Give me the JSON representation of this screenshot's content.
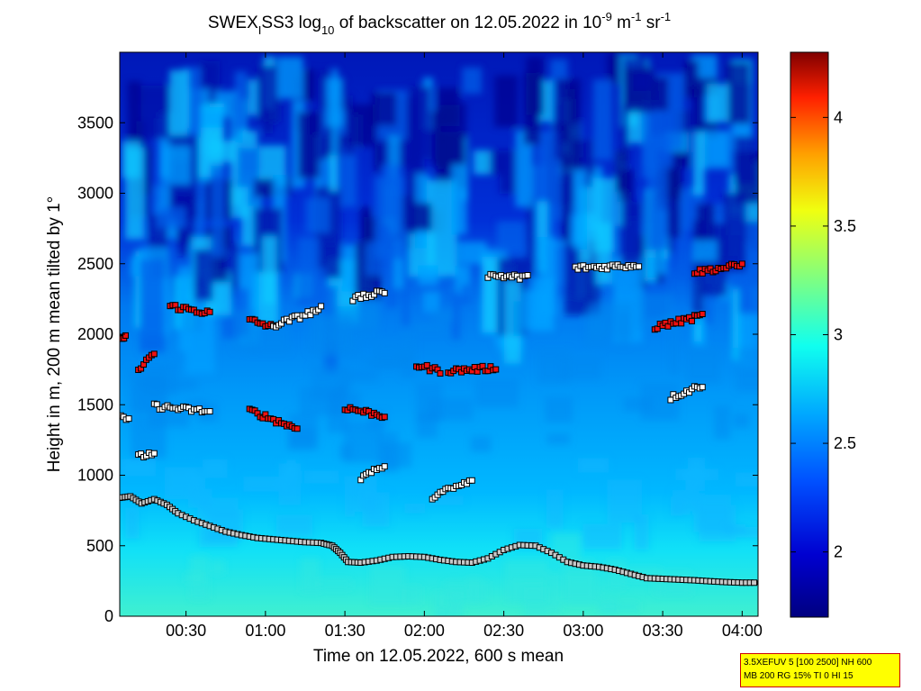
{
  "chart_data": {
    "type": "heatmap",
    "title_parts": {
      "pre": "SWEX",
      "sub1": "I",
      "mid": "SS3 log",
      "sub2": "10",
      "mid2": " of backscatter on 12.05.2022 in 10",
      "sup1": "-9",
      "mid3": " m",
      "sup2": "-1",
      "mid4": " sr",
      "sup3": "-1"
    },
    "xlabel": "Time on 12.05.2022, 600 s mean",
    "ylabel": "Height in m, 200 m mean tilted by 1°",
    "x_range_hours": [
      0.083,
      4.1
    ],
    "y_range_m": [
      0,
      4000
    ],
    "x_ticks": [
      {
        "value": 0.5,
        "label": "00:30"
      },
      {
        "value": 1.0,
        "label": "01:00"
      },
      {
        "value": 1.5,
        "label": "01:30"
      },
      {
        "value": 2.0,
        "label": "02:00"
      },
      {
        "value": 2.5,
        "label": "02:30"
      },
      {
        "value": 3.0,
        "label": "03:00"
      },
      {
        "value": 3.5,
        "label": "03:30"
      },
      {
        "value": 4.0,
        "label": "04:00"
      }
    ],
    "y_ticks": [
      {
        "value": 0,
        "label": "0"
      },
      {
        "value": 500,
        "label": "500"
      },
      {
        "value": 1000,
        "label": "1000"
      },
      {
        "value": 1500,
        "label": "1500"
      },
      {
        "value": 2000,
        "label": "2000"
      },
      {
        "value": 2500,
        "label": "2500"
      },
      {
        "value": 3000,
        "label": "3000"
      },
      {
        "value": 3500,
        "label": "3500"
      }
    ],
    "colorbar": {
      "range": [
        1.7,
        4.3
      ],
      "ticks": [
        {
          "value": 2,
          "label": "2"
        },
        {
          "value": 2.5,
          "label": "2.5"
        },
        {
          "value": 3,
          "label": "3"
        },
        {
          "value": 3.5,
          "label": "3.5"
        },
        {
          "value": 4,
          "label": "4"
        }
      ]
    },
    "boundary_layer_height": [
      [
        0.083,
        840
      ],
      [
        0.15,
        850
      ],
      [
        0.22,
        800
      ],
      [
        0.3,
        830
      ],
      [
        0.38,
        790
      ],
      [
        0.45,
        730
      ],
      [
        0.55,
        680
      ],
      [
        0.65,
        640
      ],
      [
        0.75,
        600
      ],
      [
        0.85,
        575
      ],
      [
        0.95,
        555
      ],
      [
        1.05,
        545
      ],
      [
        1.15,
        535
      ],
      [
        1.25,
        525
      ],
      [
        1.35,
        520
      ],
      [
        1.42,
        500
      ],
      [
        1.47,
        450
      ],
      [
        1.52,
        385
      ],
      [
        1.6,
        380
      ],
      [
        1.7,
        395
      ],
      [
        1.8,
        420
      ],
      [
        1.9,
        425
      ],
      [
        2.0,
        420
      ],
      [
        2.1,
        400
      ],
      [
        2.2,
        385
      ],
      [
        2.3,
        380
      ],
      [
        2.4,
        410
      ],
      [
        2.5,
        470
      ],
      [
        2.6,
        505
      ],
      [
        2.7,
        500
      ],
      [
        2.8,
        450
      ],
      [
        2.9,
        385
      ],
      [
        3.0,
        360
      ],
      [
        3.1,
        350
      ],
      [
        3.2,
        330
      ],
      [
        3.3,
        300
      ],
      [
        3.4,
        270
      ],
      [
        3.5,
        265
      ],
      [
        3.6,
        260
      ],
      [
        3.7,
        255
      ],
      [
        3.8,
        248
      ],
      [
        3.9,
        242
      ],
      [
        4.0,
        238
      ],
      [
        4.1,
        238
      ]
    ],
    "cloud_layers": [
      {
        "t0": 0.09,
        "t1": 0.14,
        "h0": 1420,
        "h1": 1410,
        "color": "white"
      },
      {
        "t0": 0.09,
        "t1": 0.12,
        "h0": 1975,
        "h1": 1980,
        "color": "red"
      },
      {
        "t0": 0.2,
        "t1": 0.3,
        "h0": 1130,
        "h1": 1160,
        "color": "white"
      },
      {
        "t0": 0.2,
        "t1": 0.3,
        "h0": 1730,
        "h1": 1870,
        "color": "red"
      },
      {
        "t0": 0.3,
        "t1": 0.65,
        "h0": 1490,
        "h1": 1450,
        "color": "white"
      },
      {
        "t0": 0.4,
        "t1": 0.65,
        "h0": 2200,
        "h1": 2150,
        "color": "red"
      },
      {
        "t0": 0.9,
        "t1": 1.05,
        "h0": 2100,
        "h1": 2050,
        "color": "red"
      },
      {
        "t0": 1.05,
        "t1": 1.35,
        "h0": 2060,
        "h1": 2180,
        "color": "white"
      },
      {
        "t0": 0.9,
        "t1": 1.2,
        "h0": 1460,
        "h1": 1330,
        "color": "red"
      },
      {
        "t0": 1.5,
        "t1": 1.75,
        "h0": 1480,
        "h1": 1420,
        "color": "red"
      },
      {
        "t0": 1.55,
        "t1": 1.75,
        "h0": 2250,
        "h1": 2300,
        "color": "white"
      },
      {
        "t0": 1.95,
        "t1": 2.1,
        "h0": 1780,
        "h1": 1740,
        "color": "red"
      },
      {
        "t0": 2.15,
        "t1": 2.45,
        "h0": 1740,
        "h1": 1760,
        "color": "red"
      },
      {
        "t0": 2.4,
        "t1": 2.65,
        "h0": 2420,
        "h1": 2400,
        "color": "white"
      },
      {
        "t0": 2.05,
        "t1": 2.3,
        "h0": 850,
        "h1": 960,
        "color": "white"
      },
      {
        "t0": 2.95,
        "t1": 3.35,
        "h0": 2470,
        "h1": 2490,
        "color": "white"
      },
      {
        "t0": 3.55,
        "t1": 3.75,
        "h0": 1550,
        "h1": 1640,
        "color": "white"
      },
      {
        "t0": 3.7,
        "t1": 4.0,
        "h0": 2440,
        "h1": 2490,
        "color": "red"
      },
      {
        "t0": 3.45,
        "t1": 3.75,
        "h0": 2050,
        "h1": 2130,
        "color": "red"
      },
      {
        "t0": 1.6,
        "t1": 1.75,
        "h0": 980,
        "h1": 1060,
        "color": "white"
      }
    ]
  },
  "info_box": {
    "line1": "3.5XEFUV 5 [100 2500] NH 600",
    "line2": "MB 200 RG 15% TI 0 HI 15"
  }
}
